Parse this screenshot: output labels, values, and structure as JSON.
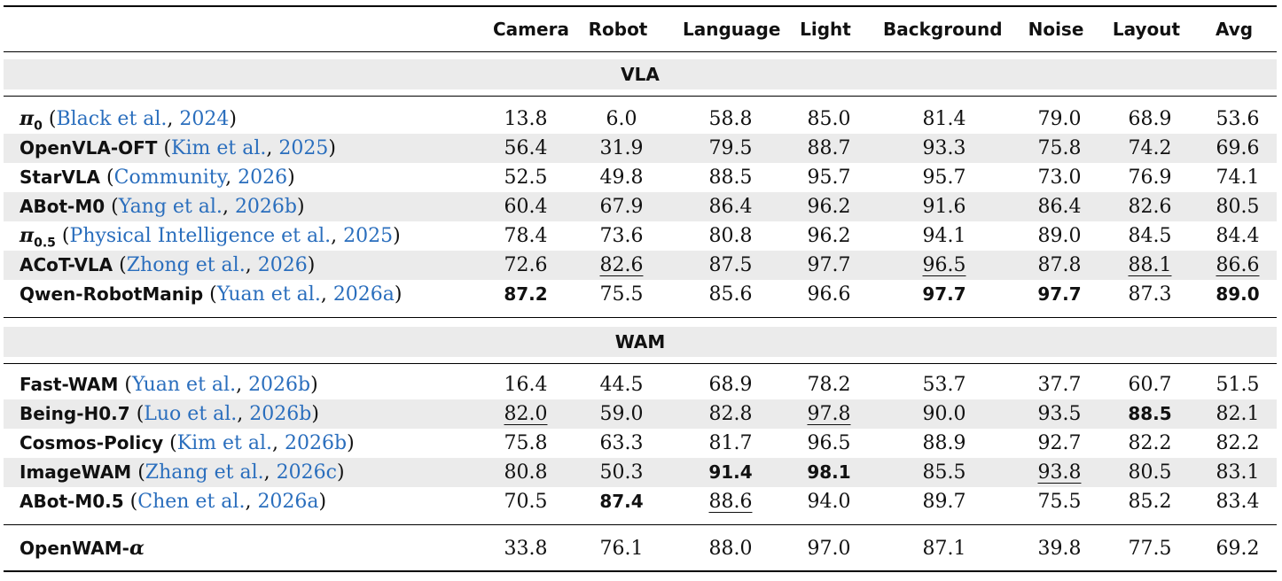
{
  "columns": [
    "Camera",
    "Robot",
    "Language",
    "Light",
    "Background",
    "Noise",
    "Layout",
    "Avg"
  ],
  "sections": [
    {
      "title": "VLA",
      "rows": [
        {
          "name": "π",
          "sub": "0",
          "math": true,
          "cite_author": "Black et al.",
          "cite_year": "2024",
          "values": [
            "13.8",
            "6.0",
            "58.8",
            "85.0",
            "81.4",
            "79.0",
            "68.9",
            "53.6"
          ],
          "best": [],
          "second": []
        },
        {
          "name": "OpenVLA-OFT",
          "sub": "",
          "math": false,
          "cite_author": "Kim et al.",
          "cite_year": "2025",
          "values": [
            "56.4",
            "31.9",
            "79.5",
            "88.7",
            "93.3",
            "75.8",
            "74.2",
            "69.6"
          ],
          "best": [],
          "second": []
        },
        {
          "name": "StarVLA",
          "sub": "",
          "math": false,
          "cite_author": "Community",
          "cite_year": "2026",
          "values": [
            "52.5",
            "49.8",
            "88.5",
            "95.7",
            "95.7",
            "73.0",
            "76.9",
            "74.1"
          ],
          "best": [],
          "second": []
        },
        {
          "name": "ABot-M0",
          "sub": "",
          "math": false,
          "cite_author": "Yang et al.",
          "cite_year": "2026b",
          "values": [
            "60.4",
            "67.9",
            "86.4",
            "96.2",
            "91.6",
            "86.4",
            "82.6",
            "80.5"
          ],
          "best": [],
          "second": []
        },
        {
          "name": "π",
          "sub": "0.5",
          "math": true,
          "cite_author": "Physical Intelligence et al.",
          "cite_year": "2025",
          "values": [
            "78.4",
            "73.6",
            "80.8",
            "96.2",
            "94.1",
            "89.0",
            "84.5",
            "84.4"
          ],
          "best": [],
          "second": []
        },
        {
          "name": "ACoT-VLA",
          "sub": "",
          "math": false,
          "cite_author": "Zhong et al.",
          "cite_year": "2026",
          "values": [
            "72.6",
            "82.6",
            "87.5",
            "97.7",
            "96.5",
            "87.8",
            "88.1",
            "86.6"
          ],
          "best": [],
          "second": [
            1,
            4,
            6,
            7
          ]
        },
        {
          "name": "Qwen-RobotManip",
          "sub": "",
          "math": false,
          "cite_author": "Yuan et al.",
          "cite_year": "2026a",
          "values": [
            "87.2",
            "75.5",
            "85.6",
            "96.6",
            "97.7",
            "97.7",
            "87.3",
            "89.0"
          ],
          "best": [
            0,
            4,
            5,
            7
          ],
          "second": []
        }
      ]
    },
    {
      "title": "WAM",
      "rows": [
        {
          "name": "Fast-WAM",
          "sub": "",
          "math": false,
          "cite_author": "Yuan et al.",
          "cite_year": "2026b",
          "values": [
            "16.4",
            "44.5",
            "68.9",
            "78.2",
            "53.7",
            "37.7",
            "60.7",
            "51.5"
          ],
          "best": [],
          "second": []
        },
        {
          "name": "Being-H0.7",
          "sub": "",
          "math": false,
          "cite_author": "Luo et al.",
          "cite_year": "2026b",
          "values": [
            "82.0",
            "59.0",
            "82.8",
            "97.8",
            "90.0",
            "93.5",
            "88.5",
            "82.1"
          ],
          "best": [
            6
          ],
          "second": [
            0,
            3
          ]
        },
        {
          "name": "Cosmos-Policy",
          "sub": "",
          "math": false,
          "cite_author": "Kim et al.",
          "cite_year": "2026b",
          "values": [
            "75.8",
            "63.3",
            "81.7",
            "96.5",
            "88.9",
            "92.7",
            "82.2",
            "82.2"
          ],
          "best": [],
          "second": []
        },
        {
          "name": "ImageWAM",
          "sub": "",
          "math": false,
          "cite_author": "Zhang et al.",
          "cite_year": "2026c",
          "values": [
            "80.8",
            "50.3",
            "91.4",
            "98.1",
            "85.5",
            "93.8",
            "80.5",
            "83.1"
          ],
          "best": [
            2,
            3
          ],
          "second": [
            5
          ]
        },
        {
          "name": "ABot-M0.5",
          "sub": "",
          "math": false,
          "cite_author": "Chen et al.",
          "cite_year": "2026a",
          "values": [
            "70.5",
            "87.4",
            "88.6",
            "94.0",
            "89.7",
            "75.5",
            "85.2",
            "83.4"
          ],
          "best": [
            1
          ],
          "second": [
            2
          ]
        }
      ]
    }
  ],
  "final_row": {
    "name": "OpenWAM-",
    "alpha": "α",
    "values": [
      "33.8",
      "76.1",
      "88.0",
      "97.0",
      "87.1",
      "39.8",
      "77.5",
      "69.2"
    ]
  }
}
